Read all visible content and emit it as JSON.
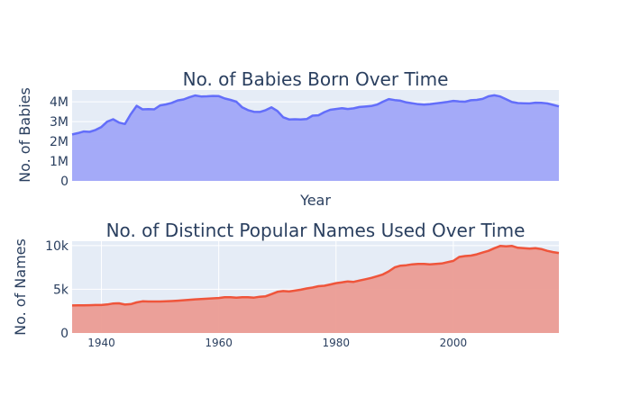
{
  "chart_data": [
    {
      "type": "area",
      "title": "No. of Babies Born Over Time",
      "xlabel": "Year",
      "ylabel": "No. of Babies",
      "ylim": [
        0,
        4600000
      ],
      "xlim": [
        1935,
        2018
      ],
      "yticks": [
        0,
        1000000,
        2000000,
        3000000,
        4000000
      ],
      "ytick_labels": [
        "0",
        "1M",
        "2M",
        "3M",
        "4M"
      ],
      "xtick_labels_shown": false,
      "grid": true,
      "legend": "none",
      "line_color": "#636efa",
      "fill_color": "#a0a7f8",
      "x": [
        1935,
        1936,
        1937,
        1938,
        1939,
        1940,
        1941,
        1942,
        1943,
        1944,
        1945,
        1946,
        1947,
        1948,
        1949,
        1950,
        1951,
        1952,
        1953,
        1954,
        1955,
        1956,
        1957,
        1958,
        1959,
        1960,
        1961,
        1962,
        1963,
        1964,
        1965,
        1966,
        1967,
        1968,
        1969,
        1970,
        1971,
        1972,
        1973,
        1974,
        1975,
        1976,
        1977,
        1978,
        1979,
        1980,
        1981,
        1982,
        1983,
        1984,
        1985,
        1986,
        1987,
        1988,
        1989,
        1990,
        1991,
        1992,
        1993,
        1994,
        1995,
        1996,
        1997,
        1998,
        1999,
        2000,
        2001,
        2002,
        2003,
        2004,
        2005,
        2006,
        2007,
        2008,
        2009,
        2010,
        2011,
        2012,
        2013,
        2014,
        2015,
        2016,
        2017,
        2018
      ],
      "y": [
        2350000,
        2420000,
        2500000,
        2480000,
        2580000,
        2730000,
        3000000,
        3120000,
        2950000,
        2880000,
        3380000,
        3800000,
        3620000,
        3630000,
        3620000,
        3820000,
        3870000,
        3950000,
        4070000,
        4120000,
        4230000,
        4320000,
        4270000,
        4280000,
        4300000,
        4290000,
        4170000,
        4100000,
        4010000,
        3720000,
        3580000,
        3500000,
        3490000,
        3580000,
        3720000,
        3540000,
        3220000,
        3110000,
        3120000,
        3110000,
        3130000,
        3300000,
        3320000,
        3480000,
        3600000,
        3640000,
        3680000,
        3640000,
        3670000,
        3740000,
        3760000,
        3790000,
        3860000,
        4010000,
        4140000,
        4090000,
        4060000,
        3970000,
        3930000,
        3880000,
        3860000,
        3880000,
        3920000,
        3960000,
        4000000,
        4050000,
        4020000,
        4010000,
        4080000,
        4100000,
        4150000,
        4280000,
        4330000,
        4270000,
        4130000,
        3990000,
        3940000,
        3930000,
        3920000,
        3960000,
        3950000,
        3920000,
        3850000,
        3770000
      ]
    },
    {
      "type": "area",
      "title": "No. of Distinct Popular Names Used Over Time",
      "xlabel": "",
      "ylabel": "No. of Names",
      "ylim": [
        0,
        10500
      ],
      "xlim": [
        1935,
        2018
      ],
      "yticks": [
        0,
        5000,
        10000
      ],
      "ytick_labels": [
        "0",
        "5k",
        "10k"
      ],
      "xticks": [
        1940,
        1960,
        1980,
        2000
      ],
      "xtick_labels": [
        "1940",
        "1960",
        "1980",
        "2000"
      ],
      "grid": true,
      "legend": "none",
      "line_color": "#ef553b",
      "fill_color": "#eb9c94",
      "x": [
        1935,
        1936,
        1937,
        1938,
        1939,
        1940,
        1941,
        1942,
        1943,
        1944,
        1945,
        1946,
        1947,
        1948,
        1949,
        1950,
        1951,
        1952,
        1953,
        1954,
        1955,
        1956,
        1957,
        1958,
        1959,
        1960,
        1961,
        1962,
        1963,
        1964,
        1965,
        1966,
        1967,
        1968,
        1969,
        1970,
        1971,
        1972,
        1973,
        1974,
        1975,
        1976,
        1977,
        1978,
        1979,
        1980,
        1981,
        1982,
        1983,
        1984,
        1985,
        1986,
        1987,
        1988,
        1989,
        1990,
        1991,
        1992,
        1993,
        1994,
        1995,
        1996,
        1997,
        1998,
        1999,
        2000,
        2001,
        2002,
        2003,
        2004,
        2005,
        2006,
        2007,
        2008,
        2009,
        2010,
        2011,
        2012,
        2013,
        2014,
        2015,
        2016,
        2017,
        2018
      ],
      "y": [
        3150,
        3160,
        3170,
        3180,
        3200,
        3200,
        3260,
        3380,
        3400,
        3250,
        3300,
        3500,
        3620,
        3600,
        3600,
        3600,
        3620,
        3650,
        3700,
        3750,
        3800,
        3850,
        3880,
        3920,
        3960,
        4000,
        4100,
        4100,
        4050,
        4100,
        4100,
        4050,
        4150,
        4200,
        4450,
        4700,
        4800,
        4750,
        4850,
        4950,
        5100,
        5200,
        5350,
        5400,
        5550,
        5700,
        5800,
        5900,
        5850,
        6000,
        6150,
        6300,
        6500,
        6700,
        7050,
        7500,
        7700,
        7750,
        7850,
        7900,
        7900,
        7850,
        7900,
        7950,
        8100,
        8250,
        8700,
        8800,
        8850,
        9000,
        9200,
        9400,
        9700,
        9950,
        9900,
        9950,
        9750,
        9700,
        9650,
        9700,
        9600,
        9400,
        9250,
        9150
      ]
    }
  ]
}
